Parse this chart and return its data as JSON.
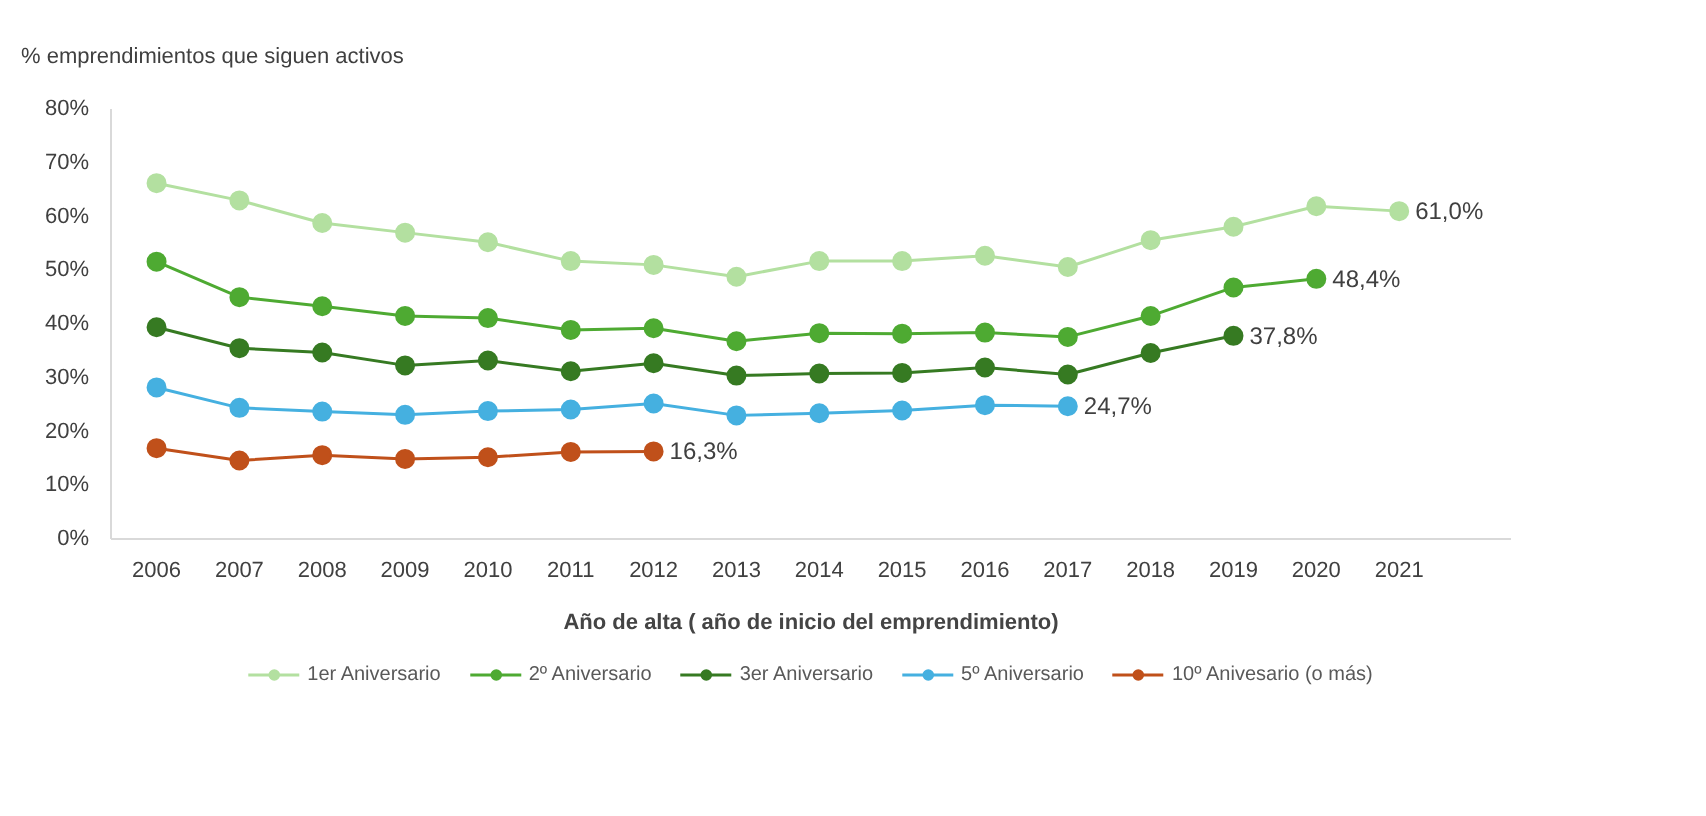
{
  "chart_data": {
    "type": "line",
    "ylabel": "% emprendimientos que siguen activos",
    "xlabel": "Año de alta ( año de inicio del emprendimiento)",
    "categories": [
      "2006",
      "2007",
      "2008",
      "2009",
      "2010",
      "2011",
      "2012",
      "2013",
      "2014",
      "2015",
      "2016",
      "2017",
      "2018",
      "2019",
      "2020",
      "2021"
    ],
    "series": [
      {
        "name": "1er Aniversario",
        "color": "#b3e0a0",
        "values": [
          66.2,
          63.0,
          58.8,
          57.0,
          55.2,
          51.7,
          51.0,
          48.8,
          51.7,
          51.7,
          52.7,
          50.6,
          55.6,
          58.1,
          61.9,
          61.0
        ],
        "value_labels": [
          null,
          null,
          null,
          null,
          null,
          null,
          null,
          null,
          null,
          null,
          null,
          null,
          null,
          null,
          null,
          "61,0%"
        ]
      },
      {
        "name": "2º Aniversario",
        "color": "#4eaa32",
        "values": [
          51.6,
          45.0,
          43.3,
          41.5,
          41.1,
          38.9,
          39.2,
          36.8,
          38.3,
          38.2,
          38.4,
          37.6,
          41.5,
          46.8,
          48.4,
          null
        ],
        "value_labels": [
          null,
          null,
          null,
          null,
          null,
          null,
          null,
          null,
          null,
          null,
          null,
          null,
          null,
          null,
          "48,4%",
          null
        ]
      },
      {
        "name": "3er Aniversario",
        "color": "#367a22",
        "values": [
          39.4,
          35.5,
          34.7,
          32.3,
          33.2,
          31.2,
          32.7,
          30.4,
          30.8,
          30.9,
          31.9,
          30.6,
          34.6,
          37.8,
          null,
          null
        ],
        "value_labels": [
          null,
          null,
          null,
          null,
          null,
          null,
          null,
          null,
          null,
          null,
          null,
          null,
          null,
          "37,8%",
          null,
          null
        ]
      },
      {
        "name": "5º Aniversario",
        "color": "#45b0e0",
        "values": [
          28.2,
          24.4,
          23.7,
          23.1,
          23.8,
          24.1,
          25.2,
          23.0,
          23.4,
          23.9,
          24.9,
          24.7,
          null,
          null,
          null,
          null
        ],
        "value_labels": [
          null,
          null,
          null,
          null,
          null,
          null,
          null,
          null,
          null,
          null,
          null,
          "24,7%",
          null,
          null,
          null,
          null
        ]
      },
      {
        "name": "10º Anivesario (o más)",
        "color": "#c0501a",
        "values": [
          16.9,
          14.6,
          15.6,
          14.9,
          15.2,
          16.2,
          16.3,
          null,
          null,
          null,
          null,
          null,
          null,
          null,
          null,
          null
        ],
        "value_labels": [
          null,
          null,
          null,
          null,
          null,
          null,
          "16,3%",
          null,
          null,
          null,
          null,
          null,
          null,
          null,
          null,
          null
        ]
      }
    ],
    "ylim": [
      0,
      80
    ],
    "yticks": [
      {
        "value": 0,
        "label": "0%"
      },
      {
        "value": 10,
        "label": "10%"
      },
      {
        "value": 20,
        "label": "20%"
      },
      {
        "value": 30,
        "label": "30%"
      },
      {
        "value": 40,
        "label": "40%"
      },
      {
        "value": 50,
        "label": "50%"
      },
      {
        "value": 60,
        "label": "60%"
      },
      {
        "value": 70,
        "label": "70%"
      },
      {
        "value": 80,
        "label": "80%"
      }
    ],
    "grid": false,
    "legend": "bottom",
    "marker": "circle",
    "line_style": "solid"
  }
}
